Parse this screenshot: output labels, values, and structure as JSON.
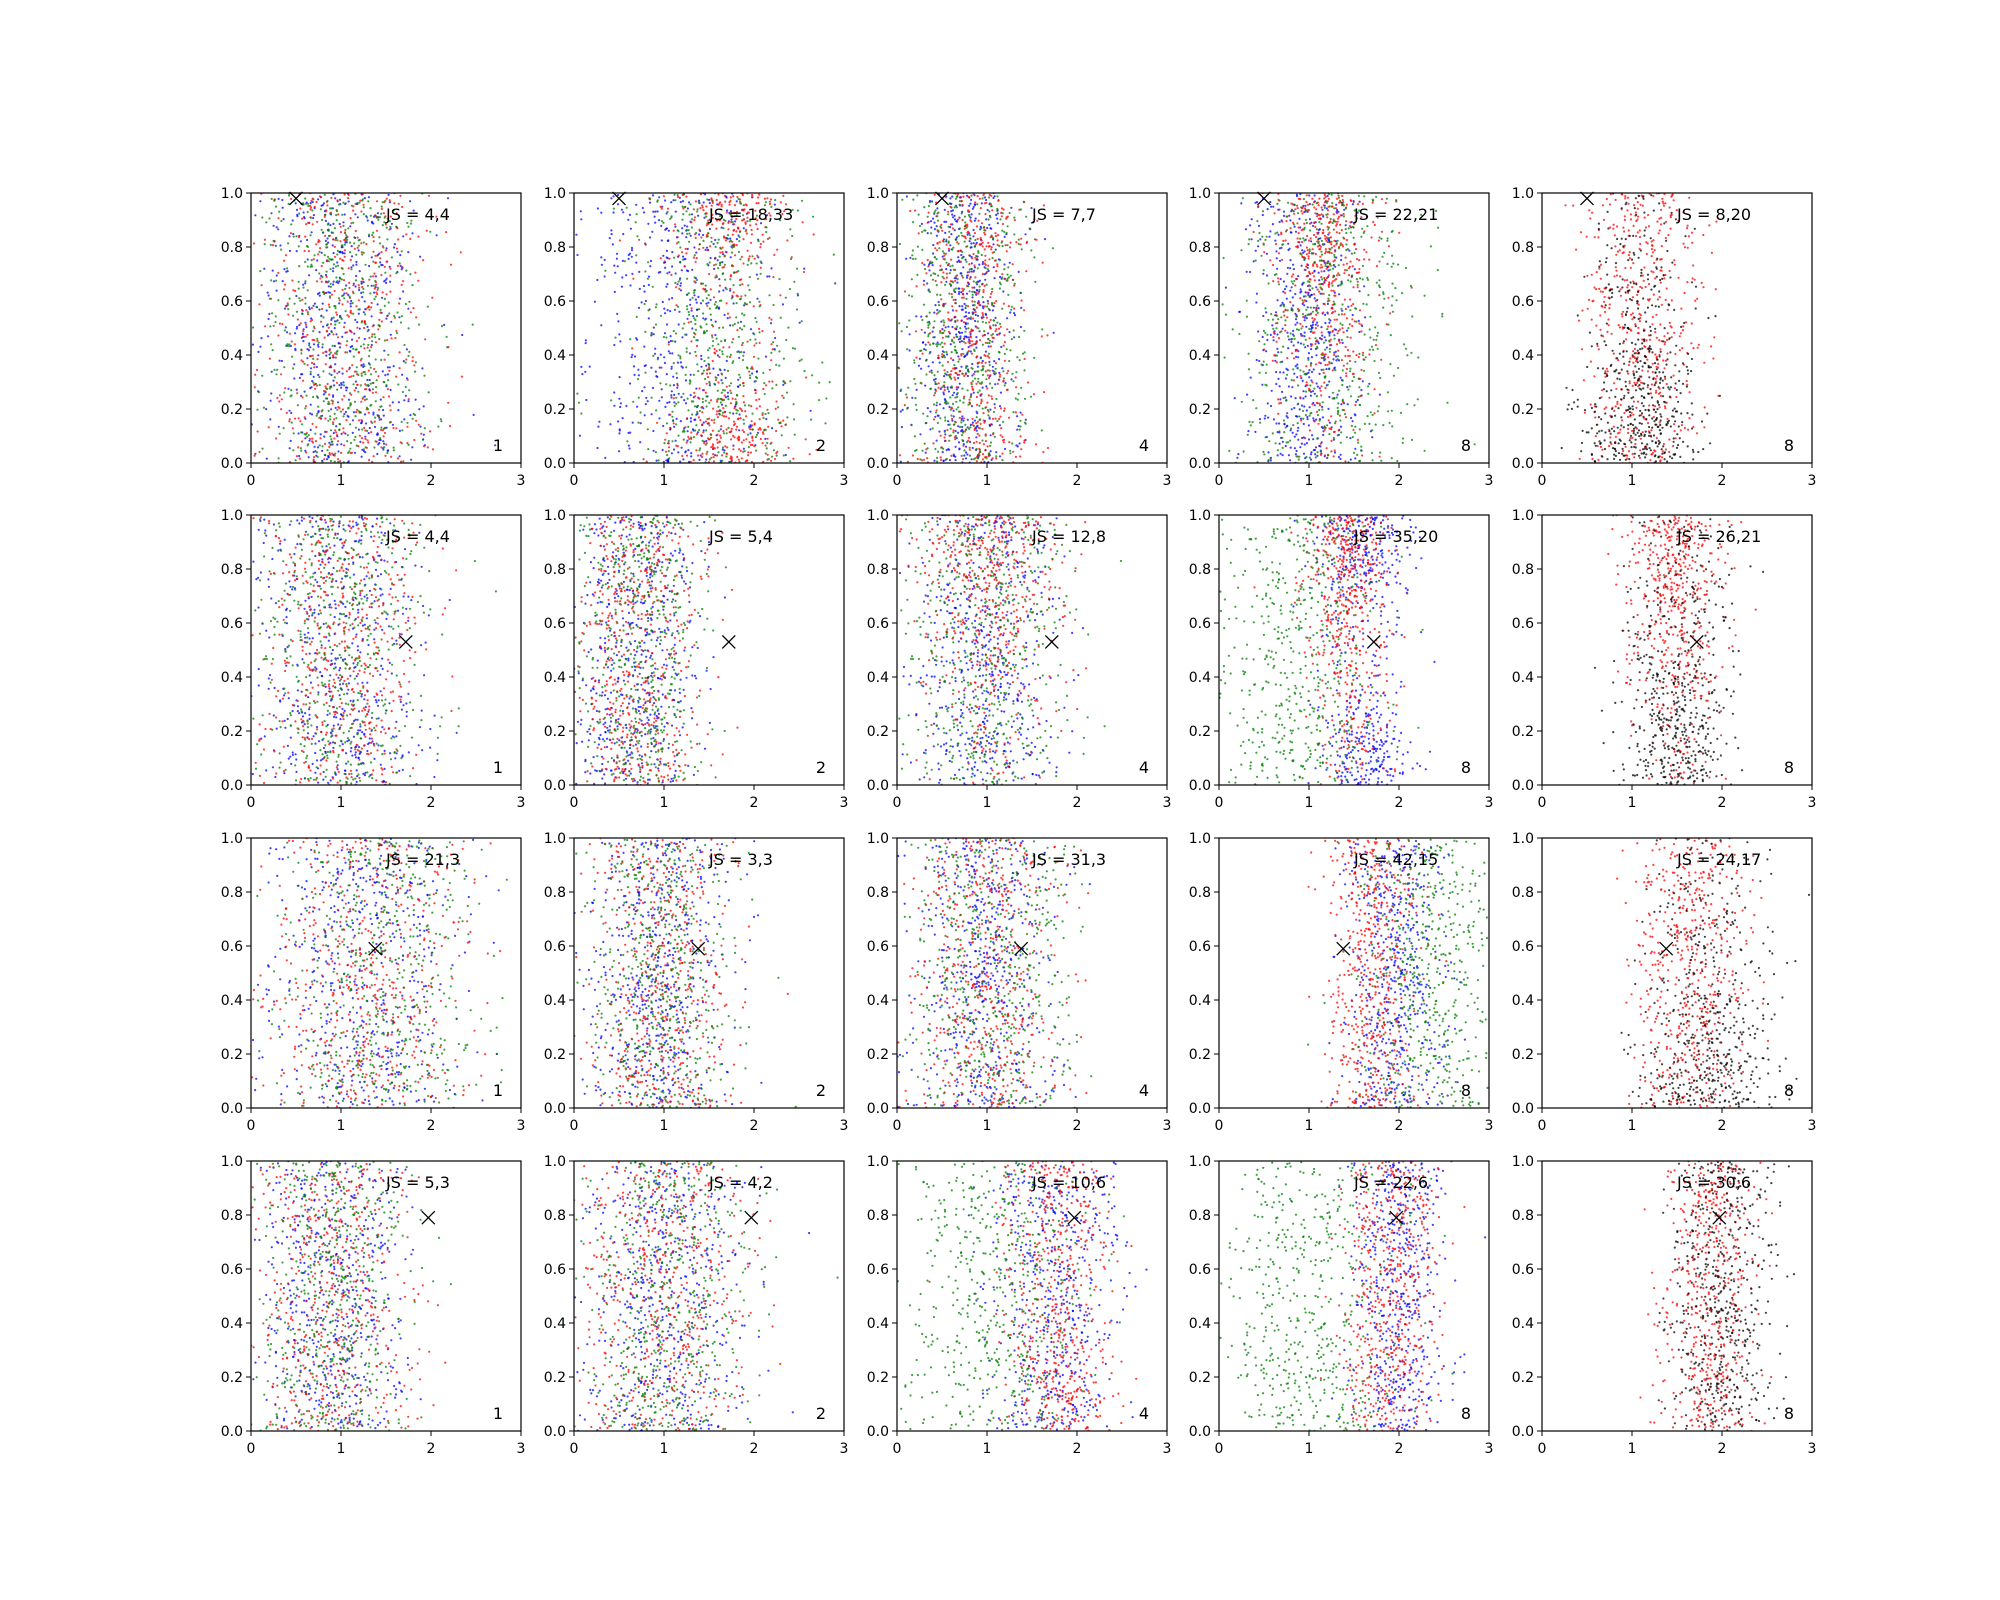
{
  "figure": {
    "rows": 4,
    "cols": 5,
    "colors": {
      "black": "#000000",
      "red": "#ff0000",
      "green": "#008000",
      "blue": "#0000ff"
    }
  },
  "chart_data": [
    {
      "type": "scatter",
      "js_label": "JS = 4,4",
      "corner_label": "1",
      "marker_x": 0.5,
      "marker_y": 0.98,
      "xlim": [
        0,
        3
      ],
      "ylim": [
        0,
        1
      ],
      "xticks": [
        "0",
        "1",
        "2",
        "3"
      ],
      "yticks": [
        "0.0",
        "0.2",
        "0.4",
        "0.6",
        "0.8",
        "1.0"
      ],
      "series": [
        {
          "color": "blue",
          "center": 1.0,
          "spread": 0.45
        },
        {
          "color": "red",
          "center": 1.0,
          "spread": 0.5
        },
        {
          "color": "green",
          "center": 1.0,
          "spread": 0.45
        }
      ]
    },
    {
      "type": "scatter",
      "js_label": "JS = 18,33",
      "corner_label": "2",
      "marker_x": 0.5,
      "marker_y": 0.98,
      "xlim": [
        0,
        3
      ],
      "ylim": [
        0,
        1
      ],
      "xticks": [
        "0",
        "1",
        "2",
        "3"
      ],
      "yticks": [
        "0.0",
        "0.2",
        "0.4",
        "0.6",
        "0.8",
        "1.0"
      ],
      "series": [
        {
          "color": "blue",
          "center": 1.2,
          "spread": 0.5
        },
        {
          "color": "red",
          "center": 1.7,
          "spread": 0.35,
          "yband": "ends"
        },
        {
          "color": "green",
          "center": 1.6,
          "spread": 0.5
        }
      ]
    },
    {
      "type": "scatter",
      "js_label": "JS = 7,7",
      "corner_label": "4",
      "marker_x": 0.5,
      "marker_y": 0.98,
      "xlim": [
        0,
        3
      ],
      "ylim": [
        0,
        1
      ],
      "xticks": [
        "0",
        "1",
        "2",
        "3"
      ],
      "yticks": [
        "0.0",
        "0.2",
        "0.4",
        "0.6",
        "0.8",
        "1.0"
      ],
      "series": [
        {
          "color": "blue",
          "center": 0.75,
          "spread": 0.3
        },
        {
          "color": "red",
          "center": 0.85,
          "spread": 0.3
        },
        {
          "color": "green",
          "center": 0.75,
          "spread": 0.35
        }
      ]
    },
    {
      "type": "scatter",
      "js_label": "JS = 22,21",
      "corner_label": "8",
      "marker_x": 0.5,
      "marker_y": 0.98,
      "xlim": [
        0,
        3
      ],
      "ylim": [
        0,
        1
      ],
      "xticks": [
        "0",
        "1",
        "2",
        "3"
      ],
      "yticks": [
        "0.0",
        "0.2",
        "0.4",
        "0.6",
        "0.8",
        "1.0"
      ],
      "series": [
        {
          "color": "blue",
          "center": 0.95,
          "spread": 0.3
        },
        {
          "color": "red",
          "center": 1.15,
          "spread": 0.3,
          "yband": "top"
        },
        {
          "color": "green",
          "center": 1.25,
          "spread": 0.5
        }
      ]
    },
    {
      "type": "scatter",
      "js_label": "JS = 8,20",
      "corner_label": "8",
      "marker_x": 0.5,
      "marker_y": 0.98,
      "xlim": [
        0,
        3
      ],
      "ylim": [
        0,
        1
      ],
      "xticks": [
        "0",
        "1",
        "2",
        "3"
      ],
      "yticks": [
        "0.0",
        "0.2",
        "0.4",
        "0.6",
        "0.8",
        "1.0"
      ],
      "series": [
        {
          "color": "red",
          "center": 1.1,
          "spread": 0.3
        },
        {
          "color": "black",
          "center": 1.1,
          "spread": 0.3,
          "yband": "bottom"
        }
      ]
    },
    {
      "type": "scatter",
      "js_label": "JS = 4,4",
      "corner_label": "1",
      "marker_x": 1.72,
      "marker_y": 0.53,
      "xlim": [
        0,
        3
      ],
      "ylim": [
        0,
        1
      ],
      "xticks": [
        "0",
        "1",
        "2",
        "3"
      ],
      "yticks": [
        "0.0",
        "0.2",
        "0.4",
        "0.6",
        "0.8",
        "1.0"
      ],
      "series": [
        {
          "color": "blue",
          "center": 1.0,
          "spread": 0.45
        },
        {
          "color": "red",
          "center": 1.0,
          "spread": 0.45
        },
        {
          "color": "green",
          "center": 1.0,
          "spread": 0.45
        }
      ]
    },
    {
      "type": "scatter",
      "js_label": "JS = 5,4",
      "corner_label": "2",
      "marker_x": 1.72,
      "marker_y": 0.53,
      "xlim": [
        0,
        3
      ],
      "ylim": [
        0,
        1
      ],
      "xticks": [
        "0",
        "1",
        "2",
        "3"
      ],
      "yticks": [
        "0.0",
        "0.2",
        "0.4",
        "0.6",
        "0.8",
        "1.0"
      ],
      "series": [
        {
          "color": "blue",
          "center": 0.7,
          "spread": 0.35
        },
        {
          "color": "red",
          "center": 0.7,
          "spread": 0.35
        },
        {
          "color": "green",
          "center": 0.7,
          "spread": 0.35
        }
      ]
    },
    {
      "type": "scatter",
      "js_label": "JS = 12,8",
      "corner_label": "4",
      "marker_x": 1.72,
      "marker_y": 0.53,
      "xlim": [
        0,
        3
      ],
      "ylim": [
        0,
        1
      ],
      "xticks": [
        "0",
        "1",
        "2",
        "3"
      ],
      "yticks": [
        "0.0",
        "0.2",
        "0.4",
        "0.6",
        "0.8",
        "1.0"
      ],
      "series": [
        {
          "color": "blue",
          "center": 1.0,
          "spread": 0.4
        },
        {
          "color": "red",
          "center": 1.0,
          "spread": 0.4,
          "yband": "top"
        },
        {
          "color": "green",
          "center": 1.0,
          "spread": 0.45
        }
      ]
    },
    {
      "type": "scatter",
      "js_label": "JS = 35,20",
      "corner_label": "8",
      "marker_x": 1.72,
      "marker_y": 0.53,
      "xlim": [
        0,
        3
      ],
      "ylim": [
        0,
        1
      ],
      "xticks": [
        "0",
        "1",
        "2",
        "3"
      ],
      "yticks": [
        "0.0",
        "0.2",
        "0.4",
        "0.6",
        "0.8",
        "1.0"
      ],
      "series": [
        {
          "color": "blue",
          "center": 1.6,
          "spread": 0.25,
          "yband": "ends"
        },
        {
          "color": "red",
          "center": 1.45,
          "spread": 0.22,
          "yband": "top"
        },
        {
          "color": "green",
          "center": 0.85,
          "spread": 0.45
        }
      ]
    },
    {
      "type": "scatter",
      "js_label": "JS = 26,21",
      "corner_label": "8",
      "marker_x": 1.72,
      "marker_y": 0.53,
      "xlim": [
        0,
        3
      ],
      "ylim": [
        0,
        1
      ],
      "xticks": [
        "0",
        "1",
        "2",
        "3"
      ],
      "yticks": [
        "0.0",
        "0.2",
        "0.4",
        "0.6",
        "0.8",
        "1.0"
      ],
      "series": [
        {
          "color": "red",
          "center": 1.45,
          "spread": 0.28,
          "yband": "top"
        },
        {
          "color": "black",
          "center": 1.5,
          "spread": 0.3,
          "yband": "bottom"
        }
      ]
    },
    {
      "type": "scatter",
      "js_label": "JS = 21,3",
      "corner_label": "1",
      "marker_x": 1.38,
      "marker_y": 0.59,
      "xlim": [
        0,
        3
      ],
      "ylim": [
        0,
        1
      ],
      "xticks": [
        "0",
        "1",
        "2",
        "3"
      ],
      "yticks": [
        "0.0",
        "0.2",
        "0.4",
        "0.6",
        "0.8",
        "1.0"
      ],
      "series": [
        {
          "color": "blue",
          "center": 1.2,
          "spread": 0.55
        },
        {
          "color": "red",
          "center": 1.3,
          "spread": 0.55
        },
        {
          "color": "green",
          "center": 1.4,
          "spread": 0.55
        }
      ]
    },
    {
      "type": "scatter",
      "js_label": "JS = 3,3",
      "corner_label": "2",
      "marker_x": 1.38,
      "marker_y": 0.59,
      "xlim": [
        0,
        3
      ],
      "ylim": [
        0,
        1
      ],
      "xticks": [
        "0",
        "1",
        "2",
        "3"
      ],
      "yticks": [
        "0.0",
        "0.2",
        "0.4",
        "0.6",
        "0.8",
        "1.0"
      ],
      "series": [
        {
          "color": "blue",
          "center": 0.95,
          "spread": 0.4
        },
        {
          "color": "red",
          "center": 0.95,
          "spread": 0.4
        },
        {
          "color": "green",
          "center": 0.95,
          "spread": 0.4
        }
      ]
    },
    {
      "type": "scatter",
      "js_label": "JS = 31,3",
      "corner_label": "4",
      "marker_x": 1.38,
      "marker_y": 0.59,
      "xlim": [
        0,
        3
      ],
      "ylim": [
        0,
        1
      ],
      "xticks": [
        "0",
        "1",
        "2",
        "3"
      ],
      "yticks": [
        "0.0",
        "0.2",
        "0.4",
        "0.6",
        "0.8",
        "1.0"
      ],
      "series": [
        {
          "color": "blue",
          "center": 0.95,
          "spread": 0.4
        },
        {
          "color": "red",
          "center": 1.0,
          "spread": 0.4
        },
        {
          "color": "green",
          "center": 1.05,
          "spread": 0.45
        }
      ]
    },
    {
      "type": "scatter",
      "js_label": "JS = 42,15",
      "corner_label": "8",
      "marker_x": 1.38,
      "marker_y": 0.59,
      "xlim": [
        0,
        3
      ],
      "ylim": [
        0,
        1
      ],
      "xticks": [
        "0",
        "1",
        "2",
        "3"
      ],
      "yticks": [
        "0.0",
        "0.2",
        "0.4",
        "0.6",
        "0.8",
        "1.0"
      ],
      "series": [
        {
          "color": "blue",
          "center": 1.95,
          "spread": 0.28
        },
        {
          "color": "red",
          "center": 1.7,
          "spread": 0.25
        },
        {
          "color": "green",
          "center": 2.35,
          "spread": 0.4
        }
      ]
    },
    {
      "type": "scatter",
      "js_label": "JS = 24,17",
      "corner_label": "8",
      "marker_x": 1.38,
      "marker_y": 0.59,
      "xlim": [
        0,
        3
      ],
      "ylim": [
        0,
        1
      ],
      "xticks": [
        "0",
        "1",
        "2",
        "3"
      ],
      "yticks": [
        "0.0",
        "0.2",
        "0.4",
        "0.6",
        "0.8",
        "1.0"
      ],
      "series": [
        {
          "color": "red",
          "center": 1.65,
          "spread": 0.3
        },
        {
          "color": "black",
          "center": 1.85,
          "spread": 0.35,
          "yband": "bottom"
        }
      ]
    },
    {
      "type": "scatter",
      "js_label": "JS = 5,3",
      "corner_label": "1",
      "marker_x": 1.97,
      "marker_y": 0.79,
      "xlim": [
        0,
        3
      ],
      "ylim": [
        0,
        1
      ],
      "xticks": [
        "0",
        "1",
        "2",
        "3"
      ],
      "yticks": [
        "0.0",
        "0.2",
        "0.4",
        "0.6",
        "0.8",
        "1.0"
      ],
      "series": [
        {
          "color": "blue",
          "center": 0.9,
          "spread": 0.4
        },
        {
          "color": "red",
          "center": 0.9,
          "spread": 0.45
        },
        {
          "color": "green",
          "center": 0.9,
          "spread": 0.4
        }
      ]
    },
    {
      "type": "scatter",
      "js_label": "JS = 4,2",
      "corner_label": "2",
      "marker_x": 1.97,
      "marker_y": 0.79,
      "xlim": [
        0,
        3
      ],
      "ylim": [
        0,
        1
      ],
      "xticks": [
        "0",
        "1",
        "2",
        "3"
      ],
      "yticks": [
        "0.0",
        "0.2",
        "0.4",
        "0.6",
        "0.8",
        "1.0"
      ],
      "series": [
        {
          "color": "blue",
          "center": 1.0,
          "spread": 0.45
        },
        {
          "color": "red",
          "center": 1.0,
          "spread": 0.45
        },
        {
          "color": "green",
          "center": 1.0,
          "spread": 0.45
        }
      ]
    },
    {
      "type": "scatter",
      "js_label": "JS = 10,6",
      "corner_label": "4",
      "marker_x": 1.97,
      "marker_y": 0.79,
      "xlim": [
        0,
        3
      ],
      "ylim": [
        0,
        1
      ],
      "xticks": [
        "0",
        "1",
        "2",
        "3"
      ],
      "yticks": [
        "0.0",
        "0.2",
        "0.4",
        "0.6",
        "0.8",
        "1.0"
      ],
      "series": [
        {
          "color": "blue",
          "center": 1.75,
          "spread": 0.35
        },
        {
          "color": "red",
          "center": 1.8,
          "spread": 0.3
        },
        {
          "color": "green",
          "center": 1.1,
          "spread": 0.5
        }
      ]
    },
    {
      "type": "scatter",
      "js_label": "JS = 22,6",
      "corner_label": "8",
      "marker_x": 1.97,
      "marker_y": 0.79,
      "xlim": [
        0,
        3
      ],
      "ylim": [
        0,
        1
      ],
      "xticks": [
        "0",
        "1",
        "2",
        "3"
      ],
      "yticks": [
        "0.0",
        "0.2",
        "0.4",
        "0.6",
        "0.8",
        "1.0"
      ],
      "series": [
        {
          "color": "blue",
          "center": 2.0,
          "spread": 0.25
        },
        {
          "color": "red",
          "center": 1.9,
          "spread": 0.25
        },
        {
          "color": "green",
          "center": 1.0,
          "spread": 0.5
        }
      ]
    },
    {
      "type": "scatter",
      "js_label": "JS = 30,6",
      "corner_label": "8",
      "marker_x": 1.97,
      "marker_y": 0.79,
      "xlim": [
        0,
        3
      ],
      "ylim": [
        0,
        1
      ],
      "xticks": [
        "0",
        "1",
        "2",
        "3"
      ],
      "yticks": [
        "0.0",
        "0.2",
        "0.4",
        "0.6",
        "0.8",
        "1.0"
      ],
      "series": [
        {
          "color": "red",
          "center": 1.85,
          "spread": 0.25
        },
        {
          "color": "black",
          "center": 2.0,
          "spread": 0.3
        }
      ]
    }
  ]
}
